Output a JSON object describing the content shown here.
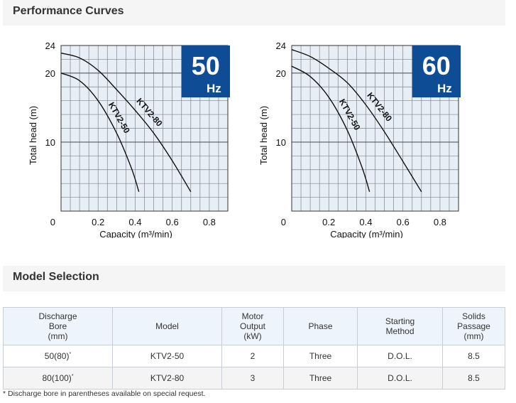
{
  "sections": {
    "curves_title": "Performance Curves",
    "selection_title": "Model Selection"
  },
  "chart_data": [
    {
      "type": "line",
      "badge": {
        "number": "50",
        "unit": "Hz"
      },
      "xlabel": "Capacity (m³/min)",
      "ylabel": "Total head (m)",
      "xlim": [
        0,
        0.9
      ],
      "ylim": [
        0,
        24
      ],
      "xticks": [
        "0.2",
        "0.4",
        "0.6",
        "0.8"
      ],
      "yticks": [
        "0",
        "10",
        "20",
        "24"
      ],
      "grid": true,
      "series": [
        {
          "name": "KTV2-50",
          "points": [
            [
              0,
              20.0
            ],
            [
              0.1,
              18.9
            ],
            [
              0.2,
              16.0
            ],
            [
              0.3,
              11.3
            ],
            [
              0.38,
              6.2
            ],
            [
              0.42,
              2.8
            ]
          ]
        },
        {
          "name": "KTV2-80",
          "points": [
            [
              0,
              22.9
            ],
            [
              0.1,
              22.2
            ],
            [
              0.2,
              20.4
            ],
            [
              0.3,
              17.6
            ],
            [
              0.4,
              14.6
            ],
            [
              0.5,
              11.3
            ],
            [
              0.6,
              7.3
            ],
            [
              0.7,
              2.8
            ]
          ]
        }
      ]
    },
    {
      "type": "line",
      "badge": {
        "number": "60",
        "unit": "Hz"
      },
      "xlabel": "Capacity (m³/min)",
      "ylabel": "Total head (m)",
      "xlim": [
        0,
        0.9
      ],
      "ylim": [
        0,
        24
      ],
      "xticks": [
        "0.2",
        "0.4",
        "0.6",
        "0.8"
      ],
      "yticks": [
        "0",
        "10",
        "20",
        "24"
      ],
      "grid": true,
      "series": [
        {
          "name": "KTV2-50",
          "points": [
            [
              0,
              21.0
            ],
            [
              0.1,
              19.5
            ],
            [
              0.2,
              16.5
            ],
            [
              0.3,
              11.7
            ],
            [
              0.38,
              6.3
            ],
            [
              0.42,
              2.8
            ]
          ]
        },
        {
          "name": "KTV2-80",
          "points": [
            [
              0,
              23.4
            ],
            [
              0.1,
              22.4
            ],
            [
              0.2,
              20.7
            ],
            [
              0.3,
              18.6
            ],
            [
              0.4,
              15.4
            ],
            [
              0.5,
              11.5
            ],
            [
              0.6,
              7.2
            ],
            [
              0.7,
              2.8
            ]
          ]
        }
      ]
    }
  ],
  "table": {
    "headers": [
      [
        "Discharge",
        "Bore",
        "(mm)"
      ],
      [
        "Model"
      ],
      [
        "Motor",
        "Output",
        "(kW)"
      ],
      [
        "Phase"
      ],
      [
        "Starting",
        "Method"
      ],
      [
        "Solids",
        "Passage",
        "(mm)"
      ]
    ],
    "rows": [
      {
        "bore": "50(80)",
        "mark": "*",
        "model": "KTV2-50",
        "output": "2",
        "phase": "Three",
        "method": "D.O.L.",
        "solids": "8.5"
      },
      {
        "bore": "80(100)",
        "mark": "*",
        "model": "KTV2-80",
        "output": "3",
        "phase": "Three",
        "method": "D.O.L.",
        "solids": "8.5"
      }
    ]
  },
  "note": "* Discharge bore in parentheses available on special request."
}
